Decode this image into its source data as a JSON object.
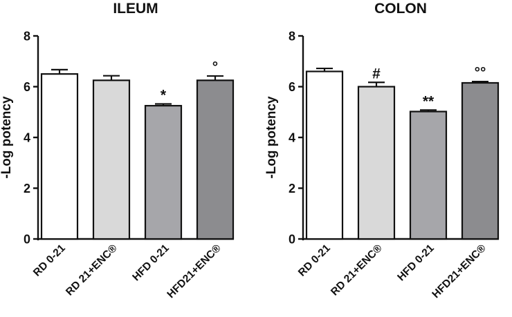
{
  "chart_data": [
    {
      "type": "bar",
      "title": "ILEUM",
      "ylabel": "-Log potency",
      "ylim": [
        0,
        8
      ],
      "yticks": [
        "0",
        "2",
        "4",
        "6",
        "8"
      ],
      "categories": [
        "RD 0-21",
        "RD 21+ENC®",
        "HFD 0-21",
        "HFD21+ENC®"
      ],
      "values": [
        6.5,
        6.25,
        5.25,
        6.25
      ],
      "errors": [
        0.17,
        0.18,
        0.07,
        0.17
      ],
      "significance": [
        "",
        "",
        "*",
        "°"
      ],
      "colors": [
        "#ffffff",
        "#d9d9d9",
        "#a6a6aa",
        "#8c8c8f"
      ]
    },
    {
      "type": "bar",
      "title": "COLON",
      "ylabel": "-Log potency",
      "ylim": [
        0,
        8
      ],
      "yticks": [
        "0",
        "2",
        "4",
        "6",
        "8"
      ],
      "categories": [
        "RD 0-21",
        "RD 21+ENC®",
        "HFD 0-21",
        "HFD21+ENC®"
      ],
      "values": [
        6.6,
        6.0,
        5.02,
        6.15
      ],
      "errors": [
        0.12,
        0.17,
        0.06,
        0.05
      ],
      "significance": [
        "",
        "#",
        "**",
        "°°"
      ],
      "colors": [
        "#ffffff",
        "#d9d9d9",
        "#a6a6aa",
        "#8c8c8f"
      ]
    }
  ]
}
